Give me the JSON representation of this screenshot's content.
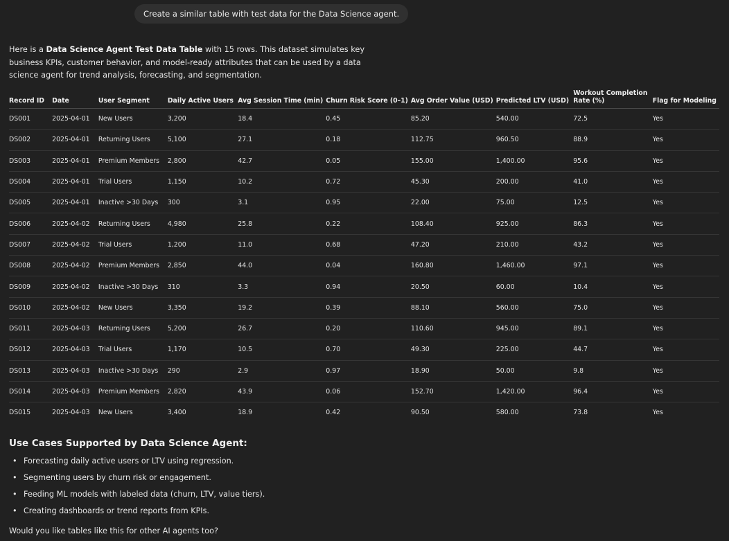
{
  "user_message": "Create a similar table with test data for the Data Science agent.",
  "intro": {
    "prefix": "Here is a ",
    "bold": "Data Science Agent Test Data Table",
    "suffix": " with 15 rows. This dataset simulates key business KPIs, customer behavior, and model-ready attributes that can be used by a data science agent for trend analysis, forecasting, and segmentation."
  },
  "table": {
    "headers": [
      "Record ID",
      "Date",
      "User Segment",
      "Daily Active Users",
      "Avg Session Time (min)",
      "Churn Risk Score (0–1)",
      "Avg Order Value (USD)",
      "Predicted LTV (USD)",
      "Workout Completion Rate (%)",
      "Flag for Modeling"
    ],
    "rows": [
      [
        "DS001",
        "2025-04-01",
        "New Users",
        "3,200",
        "18.4",
        "0.45",
        "85.20",
        "540.00",
        "72.5",
        "Yes"
      ],
      [
        "DS002",
        "2025-04-01",
        "Returning Users",
        "5,100",
        "27.1",
        "0.18",
        "112.75",
        "960.50",
        "88.9",
        "Yes"
      ],
      [
        "DS003",
        "2025-04-01",
        "Premium Members",
        "2,800",
        "42.7",
        "0.05",
        "155.00",
        "1,400.00",
        "95.6",
        "Yes"
      ],
      [
        "DS004",
        "2025-04-01",
        "Trial Users",
        "1,150",
        "10.2",
        "0.72",
        "45.30",
        "200.00",
        "41.0",
        "Yes"
      ],
      [
        "DS005",
        "2025-04-01",
        "Inactive >30 Days",
        "300",
        "3.1",
        "0.95",
        "22.00",
        "75.00",
        "12.5",
        "Yes"
      ],
      [
        "DS006",
        "2025-04-02",
        "Returning Users",
        "4,980",
        "25.8",
        "0.22",
        "108.40",
        "925.00",
        "86.3",
        "Yes"
      ],
      [
        "DS007",
        "2025-04-02",
        "Trial Users",
        "1,200",
        "11.0",
        "0.68",
        "47.20",
        "210.00",
        "43.2",
        "Yes"
      ],
      [
        "DS008",
        "2025-04-02",
        "Premium Members",
        "2,850",
        "44.0",
        "0.04",
        "160.80",
        "1,460.00",
        "97.1",
        "Yes"
      ],
      [
        "DS009",
        "2025-04-02",
        "Inactive >30 Days",
        "310",
        "3.3",
        "0.94",
        "20.50",
        "60.00",
        "10.4",
        "Yes"
      ],
      [
        "DS010",
        "2025-04-02",
        "New Users",
        "3,350",
        "19.2",
        "0.39",
        "88.10",
        "560.00",
        "75.0",
        "Yes"
      ],
      [
        "DS011",
        "2025-04-03",
        "Returning Users",
        "5,200",
        "26.7",
        "0.20",
        "110.60",
        "945.00",
        "89.1",
        "Yes"
      ],
      [
        "DS012",
        "2025-04-03",
        "Trial Users",
        "1,170",
        "10.5",
        "0.70",
        "49.30",
        "225.00",
        "44.7",
        "Yes"
      ],
      [
        "DS013",
        "2025-04-03",
        "Inactive >30 Days",
        "290",
        "2.9",
        "0.97",
        "18.90",
        "50.00",
        "9.8",
        "Yes"
      ],
      [
        "DS014",
        "2025-04-03",
        "Premium Members",
        "2,820",
        "43.9",
        "0.06",
        "152.70",
        "1,420.00",
        "96.4",
        "Yes"
      ],
      [
        "DS015",
        "2025-04-03",
        "New Users",
        "3,400",
        "18.9",
        "0.42",
        "90.50",
        "580.00",
        "73.8",
        "Yes"
      ]
    ]
  },
  "use_cases": {
    "title": "Use Cases Supported by Data Science Agent:",
    "bullet": "•",
    "items": [
      "Forecasting daily active users or LTV using regression.",
      "Segmenting users by churn risk or engagement.",
      "Feeding ML models with labeled data (churn, LTV, value tiers).",
      "Creating dashboards or trend reports from KPIs."
    ]
  },
  "outro": "Would you like tables like this for other AI agents too?",
  "colors": {
    "background": "#212121",
    "user_bubble": "#303030",
    "text": "#ececec"
  }
}
